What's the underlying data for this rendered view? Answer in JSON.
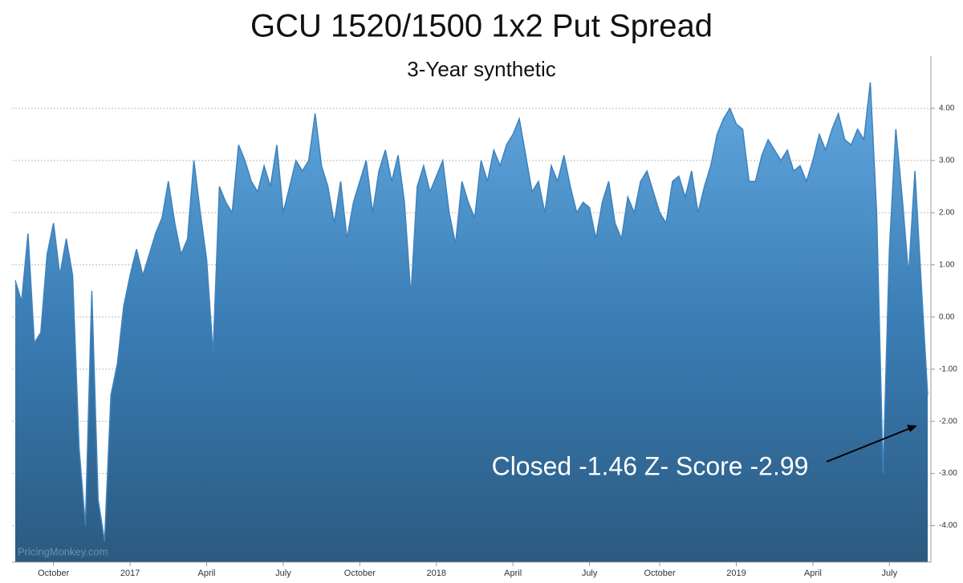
{
  "chart_data": {
    "type": "area",
    "title": "GCU 1520/1500 1x2 Put Spread",
    "subtitle": "3-Year synthetic",
    "annotation": "Closed -1.46 Z- Score -2.99",
    "watermark": "PricingMonkey.com",
    "color": "#3d82bd",
    "categories": [
      null,
      null,
      null,
      null,
      null,
      null,
      "October",
      null,
      null,
      null,
      null,
      null,
      null,
      null,
      null,
      null,
      null,
      null,
      "2017",
      null,
      null,
      null,
      null,
      null,
      null,
      null,
      null,
      null,
      null,
      null,
      "April",
      null,
      null,
      null,
      null,
      null,
      null,
      null,
      null,
      null,
      null,
      null,
      "July",
      null,
      null,
      null,
      null,
      null,
      null,
      null,
      null,
      null,
      null,
      null,
      "October",
      null,
      null,
      null,
      null,
      null,
      null,
      null,
      null,
      null,
      null,
      null,
      "2018",
      null,
      null,
      null,
      null,
      null,
      null,
      null,
      null,
      null,
      null,
      null,
      "April",
      null,
      null,
      null,
      null,
      null,
      null,
      null,
      null,
      null,
      null,
      null,
      "July",
      null,
      null,
      null,
      null,
      null,
      null,
      null,
      null,
      null,
      null,
      "October",
      null,
      null,
      null,
      null,
      null,
      null,
      null,
      null,
      null,
      null,
      null,
      "2019",
      null,
      null,
      null,
      null,
      null,
      null,
      null,
      null,
      null,
      null,
      null,
      "April",
      null,
      null,
      null,
      null,
      null,
      null,
      null,
      null,
      null,
      null,
      null,
      "July",
      null,
      null,
      null,
      null,
      null,
      null
    ],
    "values": [
      0.7,
      0.3,
      1.6,
      -0.5,
      -0.3,
      1.2,
      1.8,
      0.8,
      1.5,
      0.8,
      -2.5,
      -4.0,
      0.5,
      -3.5,
      -4.3,
      -1.5,
      -0.9,
      0.2,
      0.8,
      1.3,
      0.8,
      1.2,
      1.6,
      1.9,
      2.6,
      1.8,
      1.2,
      1.5,
      3.0,
      2.0,
      1.1,
      -0.7,
      2.5,
      2.2,
      2.0,
      3.3,
      3.0,
      2.6,
      2.4,
      2.9,
      2.5,
      3.3,
      2.0,
      2.5,
      3.0,
      2.8,
      3.0,
      3.9,
      2.9,
      2.5,
      1.8,
      2.6,
      1.5,
      2.2,
      2.6,
      3.0,
      2.0,
      2.8,
      3.2,
      2.6,
      3.1,
      2.2,
      0.4,
      2.5,
      2.9,
      2.4,
      2.7,
      3.0,
      2.0,
      1.4,
      2.6,
      2.2,
      1.9,
      3.0,
      2.6,
      3.2,
      2.9,
      3.3,
      3.5,
      3.8,
      3.1,
      2.4,
      2.6,
      2.0,
      2.9,
      2.6,
      3.1,
      2.5,
      2.0,
      2.2,
      2.1,
      1.5,
      2.2,
      2.6,
      1.8,
      1.5,
      2.3,
      2.0,
      2.6,
      2.8,
      2.4,
      2.0,
      1.8,
      2.6,
      2.7,
      2.3,
      2.8,
      2.0,
      2.5,
      2.9,
      3.5,
      3.8,
      4.0,
      3.7,
      3.6,
      2.6,
      2.6,
      3.1,
      3.4,
      3.2,
      3.0,
      3.2,
      2.8,
      2.9,
      2.6,
      3.0,
      3.5,
      3.2,
      3.6,
      3.9,
      3.4,
      3.3,
      3.6,
      3.4,
      4.5,
      2.0,
      -3.0,
      1.3,
      3.6,
      2.3,
      0.8,
      2.8,
      0.6,
      -1.5
    ],
    "ylim": [
      -4.7,
      5.0
    ],
    "yticks": [
      {
        "value": -4,
        "label": "-4.00"
      },
      {
        "value": -3,
        "label": "-3.00"
      },
      {
        "value": -2,
        "label": "-2.00"
      },
      {
        "value": -1,
        "label": "-1.00"
      },
      {
        "value": 0,
        "label": "0.00"
      },
      {
        "value": 1,
        "label": "1.00"
      },
      {
        "value": 2,
        "label": "2.00"
      },
      {
        "value": 3,
        "label": "3.00"
      },
      {
        "value": 4,
        "label": "4.00"
      }
    ],
    "grid": true
  }
}
